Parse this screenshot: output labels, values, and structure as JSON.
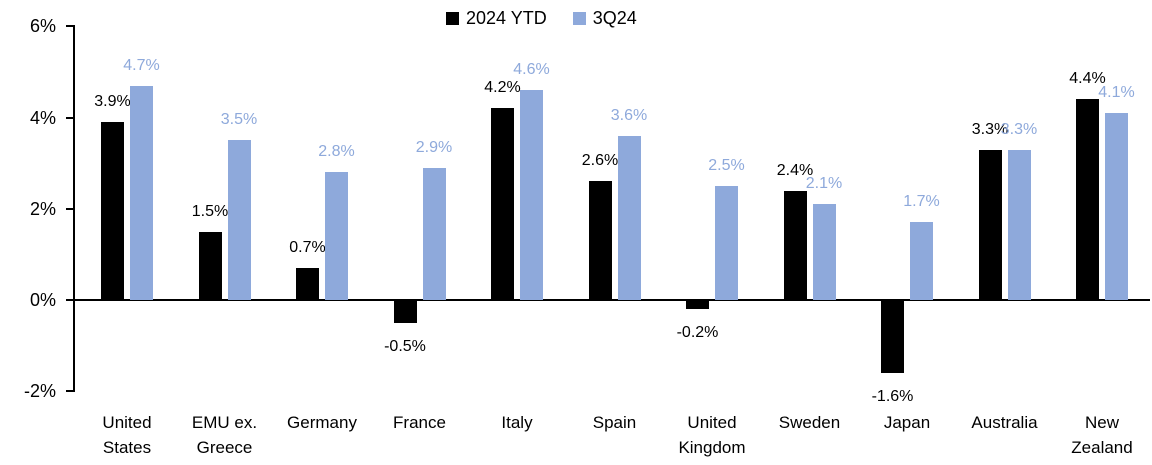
{
  "chart_data": {
    "type": "bar",
    "title": "",
    "categories": [
      "United\nStates",
      "EMU ex.\nGreece",
      "Germany",
      "France",
      "Italy",
      "Spain",
      "United\nKingdom",
      "Sweden",
      "Japan",
      "Australia",
      "New\nZealand"
    ],
    "series": [
      {
        "name": "2024 YTD",
        "color": "#000000",
        "values": [
          3.9,
          1.5,
          0.7,
          -0.5,
          4.2,
          2.6,
          -0.2,
          2.4,
          -1.6,
          3.3,
          4.4
        ]
      },
      {
        "name": "3Q24",
        "color": "#8EA9DB",
        "values": [
          4.7,
          3.5,
          2.8,
          2.9,
          4.6,
          3.6,
          2.5,
          2.1,
          1.7,
          3.3,
          4.1
        ]
      }
    ],
    "value_suffix": "%",
    "y_axis": {
      "min": -2,
      "max": 6,
      "tick_step": 2,
      "ticks": [
        -2,
        0,
        2,
        4,
        6
      ],
      "tick_labels": [
        "-2%",
        "0%",
        "2%",
        "4%",
        "6%"
      ]
    },
    "legend_position": "top-center",
    "grid": false,
    "data_labels": true,
    "label_colors": {
      "series_0": "#000000",
      "series_1": "#8EA9DB"
    }
  }
}
